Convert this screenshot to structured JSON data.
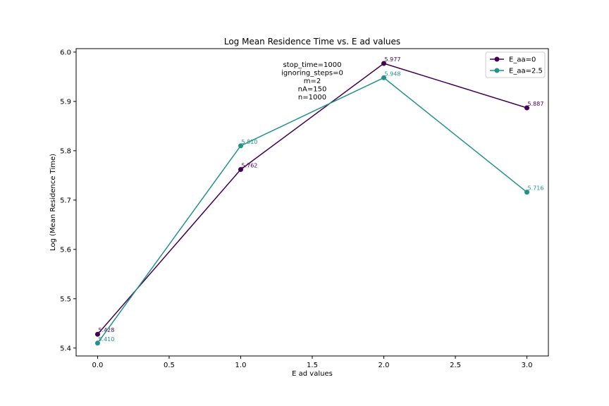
{
  "chart_data": {
    "type": "line",
    "title": "Log Mean Residence Time vs. E ad values",
    "xlabel": "E ad values",
    "ylabel": "Log (Mean Residence Time)",
    "xlim": [
      -0.15,
      3.15
    ],
    "ylim": [
      5.384,
      6.007
    ],
    "xticks": [
      0.0,
      0.5,
      1.0,
      1.5,
      2.0,
      2.5,
      3.0
    ],
    "xtick_labels": [
      "0.0",
      "0.5",
      "1.0",
      "1.5",
      "2.0",
      "2.5",
      "3.0"
    ],
    "yticks": [
      5.4,
      5.5,
      5.6,
      5.7,
      5.8,
      5.9,
      6.0
    ],
    "ytick_labels": [
      "5.4",
      "5.5",
      "5.6",
      "5.7",
      "5.8",
      "5.9",
      "6.0"
    ],
    "grid": false,
    "legend_position": "top-right",
    "x": [
      0,
      1,
      2,
      3
    ],
    "series": [
      {
        "name": "E_aa=0",
        "color": "#440154",
        "values": [
          5.428,
          5.762,
          5.977,
          5.887
        ],
        "labels": [
          "5.428",
          "5.762",
          "5.977",
          "5.887"
        ]
      },
      {
        "name": "E_aa=2.5",
        "color": "#21918c",
        "values": [
          5.41,
          5.81,
          5.948,
          5.716
        ],
        "labels": [
          "5.410",
          "5.810",
          "5.948",
          "5.716"
        ]
      }
    ],
    "annotation": {
      "lines": [
        "stop_time=1000",
        "ignoring_steps=0",
        "m=2",
        "nA=150",
        "n=1000"
      ],
      "x": 1.5,
      "y": 5.97
    }
  }
}
